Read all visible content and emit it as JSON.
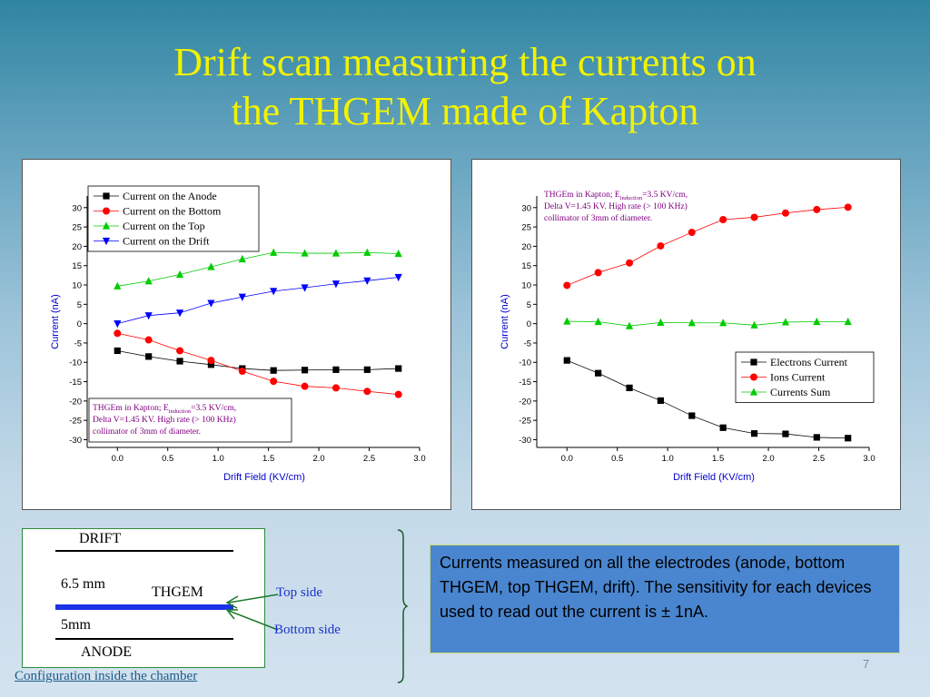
{
  "slide": {
    "title_line1": "Drift scan measuring the currents on",
    "title_line2": "the THGEM made of Kapton",
    "page_number": "7",
    "info_text": "Currents measured on all the electrodes (anode, bottom THGEM, top THGEM, drift). The sensitivity for each devices used to read out the current is ± 1nA.",
    "config": {
      "drift": "DRIFT",
      "gap_top": "6.5 mm",
      "thgem": "THGEM",
      "gap_bottom": "5mm",
      "anode": "ANODE",
      "top_side": "Top side",
      "bottom_side": "Bottom side",
      "caption": "Configuration inside the chamber"
    }
  },
  "chart_data": [
    {
      "type": "line",
      "xlabel": "Drift Field (KV/cm)",
      "ylabel": "Current (nA)",
      "xlim": [
        -0.3,
        3.0
      ],
      "ylim": [
        -32,
        33
      ],
      "xticks": [
        "0.0",
        "0.5",
        "1.0",
        "1.5",
        "2.0",
        "2.5",
        "3.0"
      ],
      "yticks": [
        "30",
        "25",
        "20",
        "15",
        "10",
        "5",
        "0",
        "-5",
        "-10",
        "-15",
        "-20",
        "-25",
        "-30"
      ],
      "legend_position": "top-left",
      "note_lines": [
        "THGEm in Kapton; E",
        "induction",
        "=3.5 KV/cm,",
        "Delta V=1.45 KV. High rate (> 100 KHz)",
        "collimator of 3mm of diameter."
      ],
      "x": [
        0.0,
        0.31,
        0.62,
        0.93,
        1.24,
        1.55,
        1.86,
        2.17,
        2.48,
        2.79
      ],
      "series": [
        {
          "name": "Current on the Anode",
          "color": "#000000",
          "marker": "square",
          "values": [
            -7.0,
            -8.5,
            -9.7,
            -10.6,
            -11.6,
            -12.1,
            -12.0,
            -11.9,
            -11.9,
            -11.6
          ]
        },
        {
          "name": "Current on the Bottom",
          "color": "#ff0000",
          "marker": "circle",
          "values": [
            -2.5,
            -4.2,
            -7.0,
            -9.5,
            -12.3,
            -14.9,
            -16.2,
            -16.6,
            -17.5,
            -18.3
          ]
        },
        {
          "name": "Current on the Top",
          "color": "#00cc00",
          "marker": "triangle-up",
          "values": [
            9.7,
            11.0,
            12.7,
            14.7,
            16.7,
            18.4,
            18.2,
            18.2,
            18.4,
            18.1
          ]
        },
        {
          "name": "Current on the Drift",
          "color": "#0000ff",
          "marker": "triangle-down",
          "values": [
            0.0,
            2.1,
            2.8,
            5.3,
            6.9,
            8.4,
            9.3,
            10.3,
            11.1,
            12.0
          ]
        }
      ]
    },
    {
      "type": "line",
      "xlabel": "Drift Field (KV/cm)",
      "ylabel": "Current (nA)",
      "xlim": [
        -0.3,
        3.0
      ],
      "ylim": [
        -32,
        33
      ],
      "xticks": [
        "0.0",
        "0.5",
        "1.0",
        "1.5",
        "2.0",
        "2.5",
        "3.0"
      ],
      "yticks": [
        "30",
        "25",
        "20",
        "15",
        "10",
        "5",
        "0",
        "-5",
        "-10",
        "-15",
        "-20",
        "-25",
        "-30"
      ],
      "legend_position": "bottom-right",
      "note_lines": [
        "THGEm in Kapton; E",
        "induction",
        "=3.5 KV/cm,",
        "Delta V=1.45 KV. High rate (> 100 KHz)",
        "collimator of 3mm of diameter."
      ],
      "x": [
        0.0,
        0.31,
        0.62,
        0.93,
        1.24,
        1.55,
        1.86,
        2.17,
        2.48,
        2.79
      ],
      "series": [
        {
          "name": "Electrons Current",
          "color": "#000000",
          "marker": "square",
          "values": [
            -9.5,
            -12.8,
            -16.6,
            -19.9,
            -23.8,
            -26.9,
            -28.4,
            -28.5,
            -29.4,
            -29.6
          ]
        },
        {
          "name": "Ions Current",
          "color": "#ff0000",
          "marker": "circle",
          "values": [
            9.9,
            13.2,
            15.7,
            20.1,
            23.6,
            26.9,
            27.5,
            28.6,
            29.5,
            30.1
          ]
        },
        {
          "name": "Currents Sum",
          "color": "#00cc00",
          "marker": "triangle-up",
          "values": [
            0.6,
            0.5,
            -0.6,
            0.3,
            0.2,
            0.2,
            -0.4,
            0.4,
            0.5,
            0.5
          ]
        }
      ]
    }
  ]
}
